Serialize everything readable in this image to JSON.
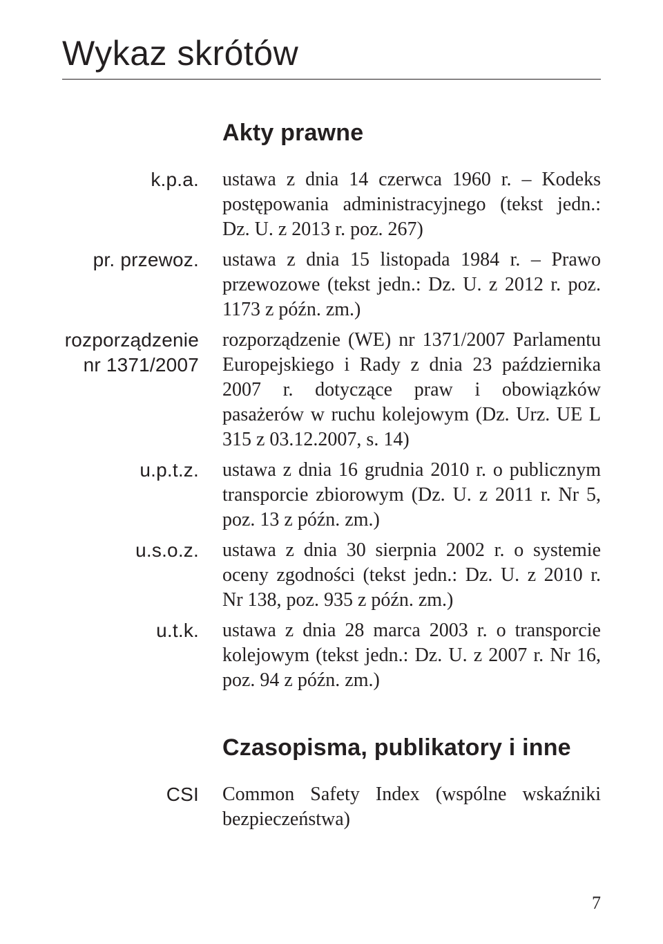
{
  "title": "Wykaz skrótów",
  "section1": "Akty prawne",
  "section2": "Czasopisma, publikatory i inne",
  "entries1": [
    {
      "term": "k.p.a.",
      "def": "ustawa z dnia 14 czerwca 1960 r. – Kodeks postępowania administracyjnego (tekst jedn.: Dz. U. z 2013 r. poz. 267)"
    },
    {
      "term": "pr. przewoz.",
      "def": "ustawa z dnia 15 listopada 1984 r. – Prawo przewozowe (tekst jedn.: Dz. U. z 2012 r. poz. 1173 z późn. zm.)"
    },
    {
      "term": "rozporządzenie\nnr 1371/2007",
      "def": "rozporządzenie (WE) nr 1371/2007 Parlamentu Europejskiego i Rady z dnia 23 października 2007 r. dotyczące praw i obowiązków pasażerów w ruchu kolejowym (Dz. Urz. UE L 315 z 03.12.2007, s. 14)"
    },
    {
      "term": "u.p.t.z.",
      "def": "ustawa z dnia 16 grudnia 2010 r. o publicznym transporcie zbiorowym (Dz. U. z 2011 r. Nr 5, poz. 13 z późn. zm.)"
    },
    {
      "term": "u.s.o.z.",
      "def": "ustawa z dnia 30 sierpnia 2002 r. o systemie oceny zgodności (tekst jedn.: Dz. U. z 2010 r. Nr 138, poz. 935 z późn. zm.)"
    },
    {
      "term": "u.t.k.",
      "def": "ustawa z dnia 28 marca 2003 r. o transporcie kolejowym (tekst jedn.: Dz. U. z 2007 r. Nr 16, poz. 94 z późn. zm.)"
    }
  ],
  "entries2": [
    {
      "term": "CSI",
      "def": "Common Safety Index (wspólne wskaźniki bezpieczeństwa)"
    }
  ],
  "pagenum": "7"
}
